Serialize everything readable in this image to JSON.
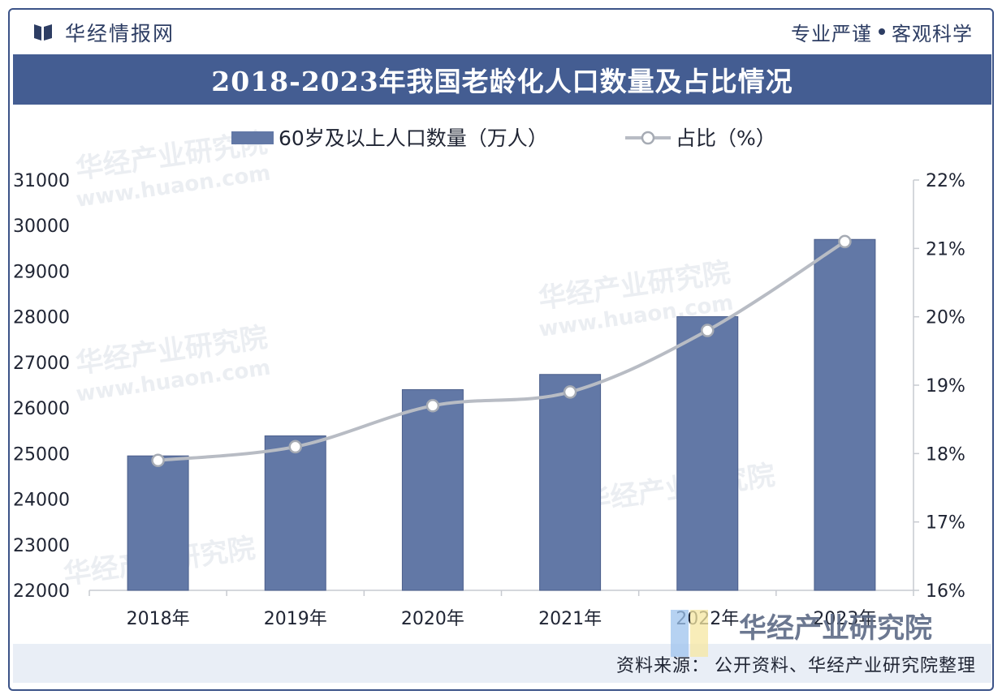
{
  "header": {
    "brand_name": "华经情报网",
    "slogan_left": "专业严谨",
    "slogan_right": "客观科学"
  },
  "footer": {
    "source_label": "资料来源：",
    "source_text": "公开资料、华经产业研究院整理"
  },
  "watermark": {
    "text": "华经产业研究院",
    "url": "www.huaon.com"
  },
  "colors": {
    "bar": "#6278a6",
    "line": "#b8bcc4",
    "marker_stroke": "#a6abb4",
    "marker_fill": "#ffffff",
    "title_bg": "#445d92",
    "axis_text": "#1f2433"
  },
  "chart_data": {
    "type": "bar+line",
    "title": "2018-2023年我国老龄化人口数量及占比情况",
    "categories": [
      "2018年",
      "2019年",
      "2020年",
      "2021年",
      "2022年",
      "2023年"
    ],
    "series": [
      {
        "name": "60岁及以上人口数量（万人）",
        "type": "bar",
        "axis": "left",
        "values": [
          24949,
          25388,
          26402,
          26736,
          28004,
          29697
        ]
      },
      {
        "name": "占比（%）",
        "type": "line",
        "axis": "right",
        "values": [
          17.9,
          18.1,
          18.7,
          18.9,
          19.8,
          21.1
        ]
      }
    ],
    "y_left": {
      "min": 22000,
      "max": 31000,
      "ticks": [
        "22000",
        "23000",
        "24000",
        "25000",
        "26000",
        "27000",
        "28000",
        "29000",
        "30000",
        "31000"
      ]
    },
    "y_right": {
      "min": 16,
      "max": 22,
      "ticks": [
        "16%",
        "17%",
        "18%",
        "19%",
        "20%",
        "21%",
        "22%"
      ]
    },
    "legend_position": "top-center",
    "grid": false
  }
}
